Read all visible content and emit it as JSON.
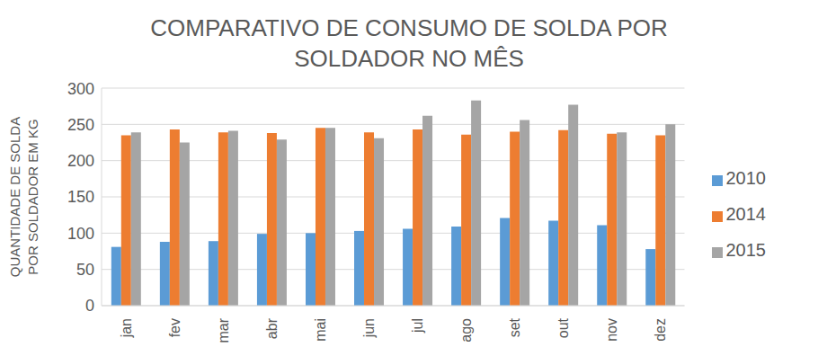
{
  "chart_data": {
    "type": "bar",
    "title": "COMPARATIVO DE CONSUMO DE SOLDA POR SOLDADOR NO MÊS",
    "y_label": "QUANTIDADE DE SOLDA POR SOLDADOR EM KG",
    "categories": [
      "jan",
      "fev",
      "mar",
      "abr",
      "mai",
      "jun",
      "jul",
      "ago",
      "set",
      "out",
      "nov",
      "dez"
    ],
    "series": [
      {
        "name": "2010",
        "color": "#5b9bd5",
        "values": [
          81,
          88,
          89,
          99,
          100,
          103,
          106,
          109,
          121,
          117,
          111,
          78
        ]
      },
      {
        "name": "2014",
        "color": "#ed7d31",
        "values": [
          235,
          243,
          239,
          238,
          245,
          239,
          243,
          236,
          240,
          242,
          237,
          235
        ]
      },
      {
        "name": "2015",
        "color": "#a5a5a5",
        "values": [
          239,
          225,
          241,
          229,
          245,
          231,
          262,
          283,
          256,
          277,
          239,
          250
        ]
      }
    ],
    "ylim": [
      0,
      300
    ],
    "yticks": [
      0,
      50,
      100,
      150,
      200,
      250,
      300
    ],
    "grid": true,
    "legend": "right"
  }
}
